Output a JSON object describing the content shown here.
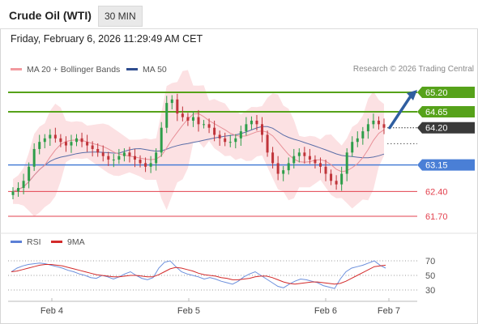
{
  "header": {
    "instrument": "Crude Oil (WTI)",
    "timeframe": "30 MIN"
  },
  "datetime": "Friday, February 6, 2026 11:29:49 AM CET",
  "legend": {
    "bollinger": "MA 20 + Bollinger Bands",
    "ma50": "MA 50",
    "rsi": "RSI",
    "rsi_ma": "9MA"
  },
  "credit": "Research © 2026 Trading Central",
  "colors": {
    "up": "#2e9e4a",
    "down": "#c0343a",
    "bands": "#f9c9cc",
    "ma20": "#e88f97",
    "ma50": "#5b6ea8",
    "resistance": "#56a21a",
    "support": "#4a7fd6",
    "support2": "#e3424f",
    "rsi": "#6b8fdc",
    "rsi_ma": "#d32a2a",
    "arrow": "#2f5ea0"
  },
  "chart_data": [
    {
      "type": "candlestick",
      "title": "Crude Oil (WTI)",
      "timeframe": "30 MIN",
      "x_ticks": [
        "Feb 4",
        "Feb 5",
        "Feb 6",
        "Feb 7"
      ],
      "ylim": [
        61.4,
        65.7
      ],
      "candle_range_approx": [
        62.35,
        65.1
      ],
      "current_price": "64.20",
      "levels": [
        {
          "label": "65.20",
          "value": 65.2,
          "kind": "resistance"
        },
        {
          "label": "64.65",
          "value": 64.65,
          "kind": "resistance"
        },
        {
          "label": "64.20",
          "value": 64.2,
          "kind": "current"
        },
        {
          "label": "63.15",
          "value": 63.15,
          "kind": "support"
        },
        {
          "label": "62.40",
          "value": 62.4,
          "kind": "support"
        },
        {
          "label": "61.70",
          "value": 61.7,
          "kind": "support"
        }
      ],
      "projection": {
        "from": 64.2,
        "to": 65.2,
        "direction": "up"
      },
      "close_path": [
        62.4,
        62.5,
        62.7,
        63.1,
        63.6,
        63.8,
        63.9,
        64.0,
        63.9,
        63.8,
        63.7,
        63.8,
        63.9,
        63.8,
        63.7,
        63.6,
        63.5,
        63.4,
        63.3,
        63.3,
        63.4,
        63.5,
        63.4,
        63.3,
        63.2,
        63.1,
        63.2,
        63.5,
        64.2,
        64.9,
        65.0,
        64.6,
        64.5,
        64.4,
        64.5,
        64.3,
        64.3,
        64.2,
        64.0,
        63.9,
        63.8,
        63.8,
        63.9,
        64.1,
        64.3,
        64.4,
        64.3,
        64.0,
        63.5,
        63.2,
        62.9,
        63.0,
        63.2,
        63.4,
        63.5,
        63.4,
        63.3,
        63.2,
        63.1,
        62.9,
        62.7,
        62.6,
        62.9,
        63.5,
        63.8,
        63.9,
        64.1,
        64.3,
        64.4,
        64.3,
        64.2
      ]
    },
    {
      "type": "line",
      "title": "RSI",
      "series": [
        {
          "name": "RSI"
        },
        {
          "name": "9MA"
        }
      ],
      "ylim": [
        20,
        80
      ],
      "y_ticks": [
        70,
        50,
        30
      ],
      "rsi": [
        55,
        60,
        63,
        65,
        66,
        67,
        66,
        64,
        62,
        60,
        57,
        55,
        52,
        50,
        47,
        46,
        50,
        48,
        45,
        48,
        52,
        55,
        50,
        46,
        44,
        47,
        60,
        68,
        70,
        62,
        55,
        52,
        50,
        48,
        45,
        47,
        45,
        42,
        40,
        38,
        42,
        48,
        52,
        55,
        50,
        45,
        40,
        35,
        33,
        38,
        42,
        45,
        44,
        42,
        40,
        36,
        34,
        32,
        45,
        55,
        60,
        62,
        64,
        67,
        70,
        64,
        60
      ],
      "rsi_ma": [
        55,
        56,
        58,
        60,
        62,
        64,
        65,
        65,
        64,
        63,
        61,
        59,
        57,
        55,
        53,
        51,
        50,
        49,
        48,
        48,
        49,
        50,
        50,
        49,
        48,
        48,
        51,
        55,
        59,
        61,
        60,
        58,
        56,
        53,
        51,
        50,
        49,
        47,
        46,
        44,
        44,
        45,
        46,
        48,
        49,
        49,
        47,
        44,
        41,
        39,
        38,
        39,
        40,
        41,
        41,
        40,
        39,
        38,
        39,
        42,
        46,
        50,
        54,
        58,
        62,
        63,
        64
      ]
    }
  ]
}
